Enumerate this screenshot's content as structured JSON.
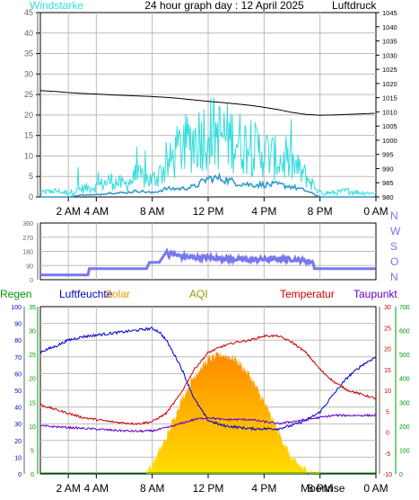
{
  "header": {
    "windstarke": "Windstarke",
    "title": "24 hour graph day : 12 April 2025",
    "luftdruck": "Luftdruck"
  },
  "colors": {
    "wind_gust": "#33dddd",
    "wind_avg": "#3399cc",
    "pressure": "#000000",
    "direction": "#7777ee",
    "humidity": "#0000cc",
    "temperature": "#cc0000",
    "dewpoint": "#6600cc",
    "solar": "#ee9900",
    "rain": "#009900",
    "aqi": "#999900",
    "axis_green": "#009900",
    "axis_gray": "#666666",
    "plot_bg": "#ffffff",
    "grid": "#bbbbbb"
  },
  "top_panel": {
    "left_axis": [
      "45",
      "40",
      "35",
      "30",
      "25",
      "20",
      "15",
      "10",
      "5",
      "0"
    ],
    "right_axis": [
      "1045",
      "1040",
      "1035",
      "1030",
      "1025",
      "1020",
      "1015",
      "1010",
      "1005",
      "1000",
      "995",
      "990",
      "985",
      "980"
    ],
    "x_labels": [
      "2 AM",
      "4 AM",
      "8 AM",
      "12 PM",
      "4 PM",
      "8 PM",
      "0 AM"
    ]
  },
  "direction_panel": {
    "left_axis": [
      "360",
      "270",
      "180",
      "90",
      "0"
    ],
    "compass": [
      "N",
      "W",
      "S",
      "O",
      "N"
    ]
  },
  "bottom_panel": {
    "legend": {
      "regen": "Regen",
      "luftfeuchte": "Luftfeuchte",
      "solar": "Solar",
      "aqi": "AQI",
      "temperatur": "Temperatur",
      "taupunkt": "Taupunkt"
    },
    "left_axis_humidity": [
      "100",
      "90",
      "80",
      "70",
      "60",
      "50",
      "40",
      "30",
      "20",
      "10",
      "0"
    ],
    "left_axis_rain": [
      "35",
      "30",
      "25",
      "20",
      "15",
      "10",
      "5",
      "0"
    ],
    "right_axis_temp": [
      "30",
      "25",
      "20",
      "15",
      "10",
      "5",
      "0",
      "-5",
      "-10"
    ],
    "right_axis_solar": [
      "700",
      "600",
      "500",
      "400",
      "300",
      "200",
      "100",
      "0"
    ],
    "x_labels": [
      "2 AM",
      "4 AM",
      "8 AM",
      "12 PM",
      "4 PM",
      "8 PM",
      "0 AM"
    ],
    "moon_label": "Moonrise",
    "moon_label_hour": 20.2
  },
  "chart_data": [
    {
      "type": "line",
      "title": "24 hour graph day : 12 April 2025",
      "xlabel": "",
      "ylabel": "Windstarke",
      "y2label": "Luftdruck",
      "x_unit": "hour",
      "xlim": [
        0,
        24
      ],
      "ylim": [
        0,
        45
      ],
      "y2lim": [
        980,
        1045
      ],
      "series": [
        {
          "name": "Luftdruck",
          "axis": "right",
          "x": [
            0,
            1,
            2,
            3,
            4,
            5,
            6,
            7,
            8,
            9,
            10,
            11,
            12,
            13,
            14,
            15,
            16,
            17,
            18,
            19,
            20,
            21,
            22,
            23,
            24
          ],
          "values": [
            1017.5,
            1017.2,
            1016.8,
            1016.5,
            1016.3,
            1016.0,
            1015.8,
            1015.6,
            1015.4,
            1015.1,
            1014.7,
            1014.2,
            1013.7,
            1013.3,
            1012.8,
            1012.3,
            1011.6,
            1010.8,
            1009.8,
            1009.1,
            1008.8,
            1008.9,
            1009.1,
            1009.3,
            1009.5
          ]
        },
        {
          "name": "gust",
          "axis": "left",
          "x": [
            0,
            1,
            2,
            3,
            4,
            5,
            6,
            7,
            8,
            9,
            10,
            11,
            12,
            13,
            14,
            15,
            16,
            17,
            18,
            19,
            20,
            21,
            22,
            23,
            24
          ],
          "values": [
            1,
            1.5,
            1,
            2,
            2.5,
            4,
            3,
            5,
            4,
            7,
            12,
            14,
            16,
            15,
            14,
            12,
            11,
            9,
            8,
            5,
            1,
            1,
            1.5,
            1,
            1
          ]
        },
        {
          "name": "average",
          "axis": "left",
          "x": [
            0,
            1,
            2,
            3,
            4,
            5,
            6,
            7,
            8,
            9,
            10,
            11,
            12,
            13,
            14,
            15,
            16,
            17,
            18,
            19,
            20,
            21,
            22,
            23,
            24
          ],
          "values": [
            0,
            0,
            0,
            0.5,
            0.5,
            1,
            1,
            1.5,
            1,
            2,
            2,
            2.5,
            4.5,
            4.5,
            3.5,
            3,
            3,
            3,
            2.5,
            1.5,
            0,
            0,
            0,
            0,
            0
          ]
        }
      ]
    },
    {
      "type": "line",
      "ylabel": "",
      "x_unit": "hour",
      "xlim": [
        0,
        24
      ],
      "ylim": [
        0,
        360
      ],
      "series": [
        {
          "name": "direction",
          "x": [
            0,
            1,
            2,
            3,
            3.4,
            3.5,
            4,
            5,
            6,
            7,
            7.6,
            7.8,
            8.5,
            9,
            10,
            11,
            12,
            13,
            14,
            15,
            16,
            17,
            18,
            19,
            19.5,
            19.6,
            20,
            21,
            22,
            23,
            24
          ],
          "values": [
            30,
            30,
            30,
            30,
            30,
            70,
            70,
            70,
            70,
            70,
            70,
            110,
            110,
            175,
            150,
            140,
            140,
            135,
            130,
            125,
            130,
            130,
            130,
            120,
            110,
            70,
            70,
            70,
            70,
            70,
            70
          ]
        }
      ]
    },
    {
      "type": "line",
      "ylabel": "Luftfeuchte",
      "y2label": "Temperatur",
      "x_unit": "hour",
      "xlim": [
        0,
        24
      ],
      "ylim": [
        0,
        100
      ],
      "y2lim": [
        -10,
        30
      ],
      "series": [
        {
          "name": "Luftfeuchte",
          "axis": "left",
          "x": [
            0,
            1,
            2,
            3,
            4,
            5,
            6,
            7,
            8,
            8.5,
            9,
            10,
            11,
            12,
            13,
            14,
            15,
            16,
            17,
            18,
            19,
            20,
            21,
            22,
            23,
            24
          ],
          "values": [
            73,
            76,
            80,
            82,
            83,
            84,
            85,
            86,
            87,
            85,
            80,
            65,
            45,
            32,
            29,
            28,
            27,
            27,
            27,
            29,
            32,
            37,
            48,
            58,
            65,
            70
          ]
        },
        {
          "name": "Temperatur",
          "axis": "right",
          "x": [
            0,
            1,
            2,
            3,
            4,
            5,
            6,
            7,
            8,
            9,
            10,
            11,
            12,
            13,
            14,
            15,
            16,
            17,
            18,
            19,
            20,
            21,
            22,
            23,
            24
          ],
          "values": [
            6.5,
            5.5,
            4.5,
            3.5,
            3.0,
            2.5,
            2.2,
            2.0,
            2.5,
            4.5,
            9.0,
            15.0,
            19.0,
            20.5,
            21.5,
            22.0,
            23.0,
            23.0,
            21.5,
            19.0,
            15.0,
            12.0,
            10.0,
            9.0,
            8.0
          ]
        },
        {
          "name": "Taupunkt",
          "axis": "right",
          "x": [
            0,
            1,
            2,
            3,
            4,
            5,
            6,
            7,
            8,
            9,
            10,
            11,
            12,
            13,
            14,
            15,
            16,
            17,
            18,
            19,
            20,
            21,
            22,
            23,
            24
          ],
          "values": [
            1.5,
            1.3,
            1.1,
            0.9,
            0.7,
            0.5,
            0.3,
            0.2,
            0.3,
            1.0,
            2.0,
            3.0,
            3.5,
            3.0,
            3.0,
            3.0,
            2.5,
            2.0,
            2.5,
            3.0,
            3.5,
            4.0,
            4.0,
            4.0,
            4.0
          ]
        },
        {
          "name": "Solar",
          "axis": "right2",
          "x": [
            0,
            6.8,
            7.5,
            8,
            9,
            10,
            11,
            12,
            13,
            14,
            15,
            16,
            17,
            18,
            19,
            19.6,
            20,
            24
          ],
          "values": [
            0,
            0,
            0,
            40,
            150,
            300,
            410,
            480,
            500,
            480,
            410,
            300,
            180,
            60,
            15,
            5,
            0,
            0
          ]
        },
        {
          "name": "Regen",
          "axis": "left2",
          "x": [
            0,
            24
          ],
          "values": [
            0,
            0
          ]
        }
      ]
    }
  ]
}
